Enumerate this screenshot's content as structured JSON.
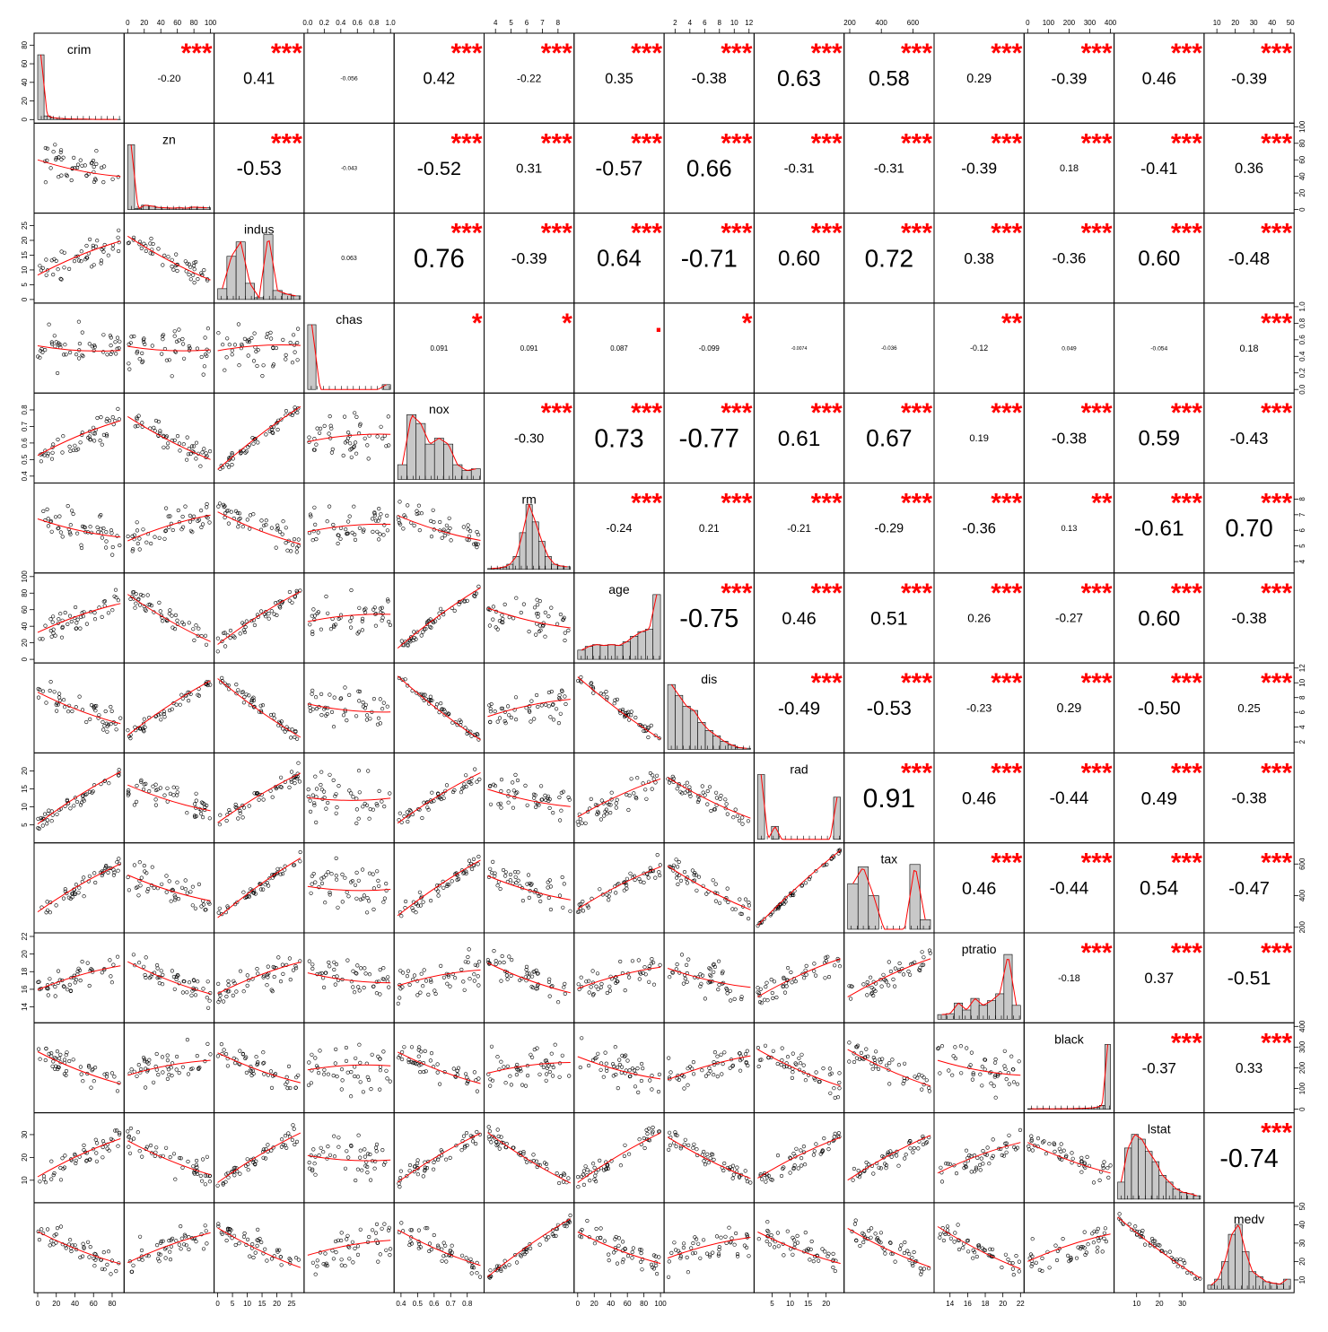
{
  "chart_data": {
    "type": "scatter",
    "variables": [
      "crim",
      "zn",
      "indus",
      "chas",
      "nox",
      "rm",
      "age",
      "dis",
      "rad",
      "tax",
      "ptratio",
      "black",
      "lstat",
      "medv"
    ],
    "ranges": [
      [
        0,
        89
      ],
      [
        0,
        100
      ],
      [
        0,
        28
      ],
      [
        0,
        1
      ],
      [
        0.38,
        0.88
      ],
      [
        3.5,
        8.8
      ],
      [
        0,
        100
      ],
      [
        1,
        12.2
      ],
      [
        1,
        24
      ],
      [
        187,
        711
      ],
      [
        12.6,
        22
      ],
      [
        0,
        400
      ],
      [
        1.7,
        38
      ],
      [
        5,
        50
      ]
    ],
    "ticks": [
      [
        0,
        20,
        40,
        60,
        80
      ],
      [
        0,
        20,
        40,
        60,
        80,
        100
      ],
      [
        0,
        5,
        10,
        15,
        20,
        25
      ],
      [
        0,
        0.2,
        0.4,
        0.6,
        0.8,
        1.0
      ],
      [
        0.4,
        0.5,
        0.6,
        0.7,
        0.8
      ],
      [
        4,
        5,
        6,
        7,
        8
      ],
      [
        0,
        20,
        40,
        60,
        80,
        100
      ],
      [
        2,
        4,
        6,
        8,
        10,
        12
      ],
      [
        5,
        10,
        15,
        20
      ],
      [
        200,
        400,
        600
      ],
      [
        14,
        16,
        18,
        20,
        22
      ],
      [
        0,
        100,
        200,
        300,
        400
      ],
      [
        10,
        20,
        30
      ],
      [
        10,
        20,
        30,
        40,
        50
      ]
    ],
    "tick_labels": [
      [
        "0",
        "20",
        "40",
        "60",
        "80"
      ],
      [
        "0",
        "20",
        "40",
        "60",
        "80",
        "100"
      ],
      [
        "0",
        "5",
        "10",
        "15",
        "20",
        "25"
      ],
      [
        "0.0",
        "0.2",
        "0.4",
        "0.6",
        "0.8",
        "1.0"
      ],
      [
        "0.4",
        "0.5",
        "0.6",
        "0.7",
        "0.8"
      ],
      [
        "4",
        "5",
        "6",
        "7",
        "8"
      ],
      [
        "0",
        "20",
        "40",
        "60",
        "80",
        "100"
      ],
      [
        "2",
        "4",
        "6",
        "8",
        "10",
        "12"
      ],
      [
        "5",
        "10",
        "15",
        "20"
      ],
      [
        "200",
        "400",
        "600"
      ],
      [
        "14",
        "16",
        "18",
        "20",
        "22"
      ],
      [
        "0",
        "100",
        "200",
        "300",
        "400"
      ],
      [
        "10",
        "20",
        "30"
      ],
      [
        "10",
        "20",
        "30",
        "40",
        "50"
      ]
    ],
    "correlations": [
      {
        "i": 0,
        "j": 1,
        "r": "-0.20",
        "stars": "***"
      },
      {
        "i": 0,
        "j": 2,
        "r": "0.41",
        "stars": "***"
      },
      {
        "i": 0,
        "j": 3,
        "r": "-0.056",
        "stars": ""
      },
      {
        "i": 0,
        "j": 4,
        "r": "0.42",
        "stars": "***"
      },
      {
        "i": 0,
        "j": 5,
        "r": "-0.22",
        "stars": "***"
      },
      {
        "i": 0,
        "j": 6,
        "r": "0.35",
        "stars": "***"
      },
      {
        "i": 0,
        "j": 7,
        "r": "-0.38",
        "stars": "***"
      },
      {
        "i": 0,
        "j": 8,
        "r": "0.63",
        "stars": "***"
      },
      {
        "i": 0,
        "j": 9,
        "r": "0.58",
        "stars": "***"
      },
      {
        "i": 0,
        "j": 10,
        "r": "0.29",
        "stars": "***"
      },
      {
        "i": 0,
        "j": 11,
        "r": "-0.39",
        "stars": "***"
      },
      {
        "i": 0,
        "j": 12,
        "r": "0.46",
        "stars": "***"
      },
      {
        "i": 0,
        "j": 13,
        "r": "-0.39",
        "stars": "***"
      },
      {
        "i": 1,
        "j": 2,
        "r": "-0.53",
        "stars": "***"
      },
      {
        "i": 1,
        "j": 3,
        "r": "-0.043",
        "stars": ""
      },
      {
        "i": 1,
        "j": 4,
        "r": "-0.52",
        "stars": "***"
      },
      {
        "i": 1,
        "j": 5,
        "r": "0.31",
        "stars": "***"
      },
      {
        "i": 1,
        "j": 6,
        "r": "-0.57",
        "stars": "***"
      },
      {
        "i": 1,
        "j": 7,
        "r": "0.66",
        "stars": "***"
      },
      {
        "i": 1,
        "j": 8,
        "r": "-0.31",
        "stars": "***"
      },
      {
        "i": 1,
        "j": 9,
        "r": "-0.31",
        "stars": "***"
      },
      {
        "i": 1,
        "j": 10,
        "r": "-0.39",
        "stars": "***"
      },
      {
        "i": 1,
        "j": 11,
        "r": "0.18",
        "stars": "***"
      },
      {
        "i": 1,
        "j": 12,
        "r": "-0.41",
        "stars": "***"
      },
      {
        "i": 1,
        "j": 13,
        "r": "0.36",
        "stars": "***"
      },
      {
        "i": 2,
        "j": 3,
        "r": "0.063",
        "stars": ""
      },
      {
        "i": 2,
        "j": 4,
        "r": "0.76",
        "stars": "***"
      },
      {
        "i": 2,
        "j": 5,
        "r": "-0.39",
        "stars": "***"
      },
      {
        "i": 2,
        "j": 6,
        "r": "0.64",
        "stars": "***"
      },
      {
        "i": 2,
        "j": 7,
        "r": "-0.71",
        "stars": "***"
      },
      {
        "i": 2,
        "j": 8,
        "r": "0.60",
        "stars": "***"
      },
      {
        "i": 2,
        "j": 9,
        "r": "0.72",
        "stars": "***"
      },
      {
        "i": 2,
        "j": 10,
        "r": "0.38",
        "stars": "***"
      },
      {
        "i": 2,
        "j": 11,
        "r": "-0.36",
        "stars": "***"
      },
      {
        "i": 2,
        "j": 12,
        "r": "0.60",
        "stars": "***"
      },
      {
        "i": 2,
        "j": 13,
        "r": "-0.48",
        "stars": "***"
      },
      {
        "i": 3,
        "j": 4,
        "r": "0.091",
        "stars": "*"
      },
      {
        "i": 3,
        "j": 5,
        "r": "0.091",
        "stars": "*"
      },
      {
        "i": 3,
        "j": 6,
        "r": "0.087",
        "stars": "."
      },
      {
        "i": 3,
        "j": 7,
        "r": "-0.099",
        "stars": "*"
      },
      {
        "i": 3,
        "j": 8,
        "r": "-0.0074",
        "stars": ""
      },
      {
        "i": 3,
        "j": 9,
        "r": "-0.036",
        "stars": ""
      },
      {
        "i": 3,
        "j": 10,
        "r": "-0.12",
        "stars": "**"
      },
      {
        "i": 3,
        "j": 11,
        "r": "0.049",
        "stars": ""
      },
      {
        "i": 3,
        "j": 12,
        "r": "-0.054",
        "stars": ""
      },
      {
        "i": 3,
        "j": 13,
        "r": "0.18",
        "stars": "***"
      },
      {
        "i": 4,
        "j": 5,
        "r": "-0.30",
        "stars": "***"
      },
      {
        "i": 4,
        "j": 6,
        "r": "0.73",
        "stars": "***"
      },
      {
        "i": 4,
        "j": 7,
        "r": "-0.77",
        "stars": "***"
      },
      {
        "i": 4,
        "j": 8,
        "r": "0.61",
        "stars": "***"
      },
      {
        "i": 4,
        "j": 9,
        "r": "0.67",
        "stars": "***"
      },
      {
        "i": 4,
        "j": 10,
        "r": "0.19",
        "stars": "***"
      },
      {
        "i": 4,
        "j": 11,
        "r": "-0.38",
        "stars": "***"
      },
      {
        "i": 4,
        "j": 12,
        "r": "0.59",
        "stars": "***"
      },
      {
        "i": 4,
        "j": 13,
        "r": "-0.43",
        "stars": "***"
      },
      {
        "i": 5,
        "j": 6,
        "r": "-0.24",
        "stars": "***"
      },
      {
        "i": 5,
        "j": 7,
        "r": "0.21",
        "stars": "***"
      },
      {
        "i": 5,
        "j": 8,
        "r": "-0.21",
        "stars": "***"
      },
      {
        "i": 5,
        "j": 9,
        "r": "-0.29",
        "stars": "***"
      },
      {
        "i": 5,
        "j": 10,
        "r": "-0.36",
        "stars": "***"
      },
      {
        "i": 5,
        "j": 11,
        "r": "0.13",
        "stars": "**"
      },
      {
        "i": 5,
        "j": 12,
        "r": "-0.61",
        "stars": "***"
      },
      {
        "i": 5,
        "j": 13,
        "r": "0.70",
        "stars": "***"
      },
      {
        "i": 6,
        "j": 7,
        "r": "-0.75",
        "stars": "***"
      },
      {
        "i": 6,
        "j": 8,
        "r": "0.46",
        "stars": "***"
      },
      {
        "i": 6,
        "j": 9,
        "r": "0.51",
        "stars": "***"
      },
      {
        "i": 6,
        "j": 10,
        "r": "0.26",
        "stars": "***"
      },
      {
        "i": 6,
        "j": 11,
        "r": "-0.27",
        "stars": "***"
      },
      {
        "i": 6,
        "j": 12,
        "r": "0.60",
        "stars": "***"
      },
      {
        "i": 6,
        "j": 13,
        "r": "-0.38",
        "stars": "***"
      },
      {
        "i": 7,
        "j": 8,
        "r": "-0.49",
        "stars": "***"
      },
      {
        "i": 7,
        "j": 9,
        "r": "-0.53",
        "stars": "***"
      },
      {
        "i": 7,
        "j": 10,
        "r": "-0.23",
        "stars": "***"
      },
      {
        "i": 7,
        "j": 11,
        "r": "0.29",
        "stars": "***"
      },
      {
        "i": 7,
        "j": 12,
        "r": "-0.50",
        "stars": "***"
      },
      {
        "i": 7,
        "j": 13,
        "r": "0.25",
        "stars": "***"
      },
      {
        "i": 8,
        "j": 9,
        "r": "0.91",
        "stars": "***"
      },
      {
        "i": 8,
        "j": 10,
        "r": "0.46",
        "stars": "***"
      },
      {
        "i": 8,
        "j": 11,
        "r": "-0.44",
        "stars": "***"
      },
      {
        "i": 8,
        "j": 12,
        "r": "0.49",
        "stars": "***"
      },
      {
        "i": 8,
        "j": 13,
        "r": "-0.38",
        "stars": "***"
      },
      {
        "i": 9,
        "j": 10,
        "r": "0.46",
        "stars": "***"
      },
      {
        "i": 9,
        "j": 11,
        "r": "-0.44",
        "stars": "***"
      },
      {
        "i": 9,
        "j": 12,
        "r": "0.54",
        "stars": "***"
      },
      {
        "i": 9,
        "j": 13,
        "r": "-0.47",
        "stars": "***"
      },
      {
        "i": 10,
        "j": 11,
        "r": "-0.18",
        "stars": "***"
      },
      {
        "i": 10,
        "j": 12,
        "r": "0.37",
        "stars": "***"
      },
      {
        "i": 10,
        "j": 13,
        "r": "-0.51",
        "stars": "***"
      },
      {
        "i": 11,
        "j": 12,
        "r": "-0.37",
        "stars": "***"
      },
      {
        "i": 11,
        "j": 13,
        "r": "0.33",
        "stars": "***"
      },
      {
        "i": 12,
        "j": 13,
        "r": "-0.74",
        "stars": "***"
      }
    ],
    "histograms": [
      [
        440,
        25,
        12,
        8,
        5,
        4,
        3,
        3,
        2,
        1,
        1,
        1,
        1
      ],
      [
        372,
        5,
        25,
        20,
        12,
        10,
        8,
        10,
        8,
        14,
        12,
        10
      ],
      [
        30,
        120,
        160,
        45,
        5,
        180,
        25,
        15,
        10
      ],
      [
        471,
        0,
        0,
        0,
        0,
        0,
        0,
        0,
        0,
        35
      ],
      [
        25,
        110,
        95,
        60,
        70,
        60,
        25,
        15,
        18
      ],
      [
        2,
        3,
        5,
        12,
        30,
        85,
        150,
        110,
        65,
        30,
        12,
        8,
        6
      ],
      [
        20,
        28,
        32,
        30,
        32,
        30,
        38,
        50,
        60,
        65,
        140
      ],
      [
        120,
        100,
        80,
        72,
        50,
        35,
        25,
        15,
        8,
        3,
        2
      ],
      [
        200,
        0,
        40,
        0,
        0,
        0,
        0,
        0,
        0,
        0,
        0,
        130
      ],
      [
        95,
        130,
        70,
        0,
        0,
        0,
        135,
        20
      ],
      [
        10,
        12,
        35,
        20,
        45,
        30,
        40,
        55,
        140,
        30
      ],
      [
        3,
        2,
        3,
        3,
        2,
        3,
        3,
        3,
        4,
        5,
        6,
        8,
        12,
        25,
        420
      ],
      [
        25,
        75,
        95,
        88,
        70,
        55,
        35,
        25,
        15,
        10,
        8,
        5
      ],
      [
        8,
        20,
        55,
        110,
        130,
        75,
        35,
        25,
        15,
        12,
        10,
        20
      ]
    ],
    "colors": {
      "stars": "#ff0000",
      "smooth": "#ff0000",
      "points": "#000000",
      "bars": "#c8c8c8"
    }
  }
}
